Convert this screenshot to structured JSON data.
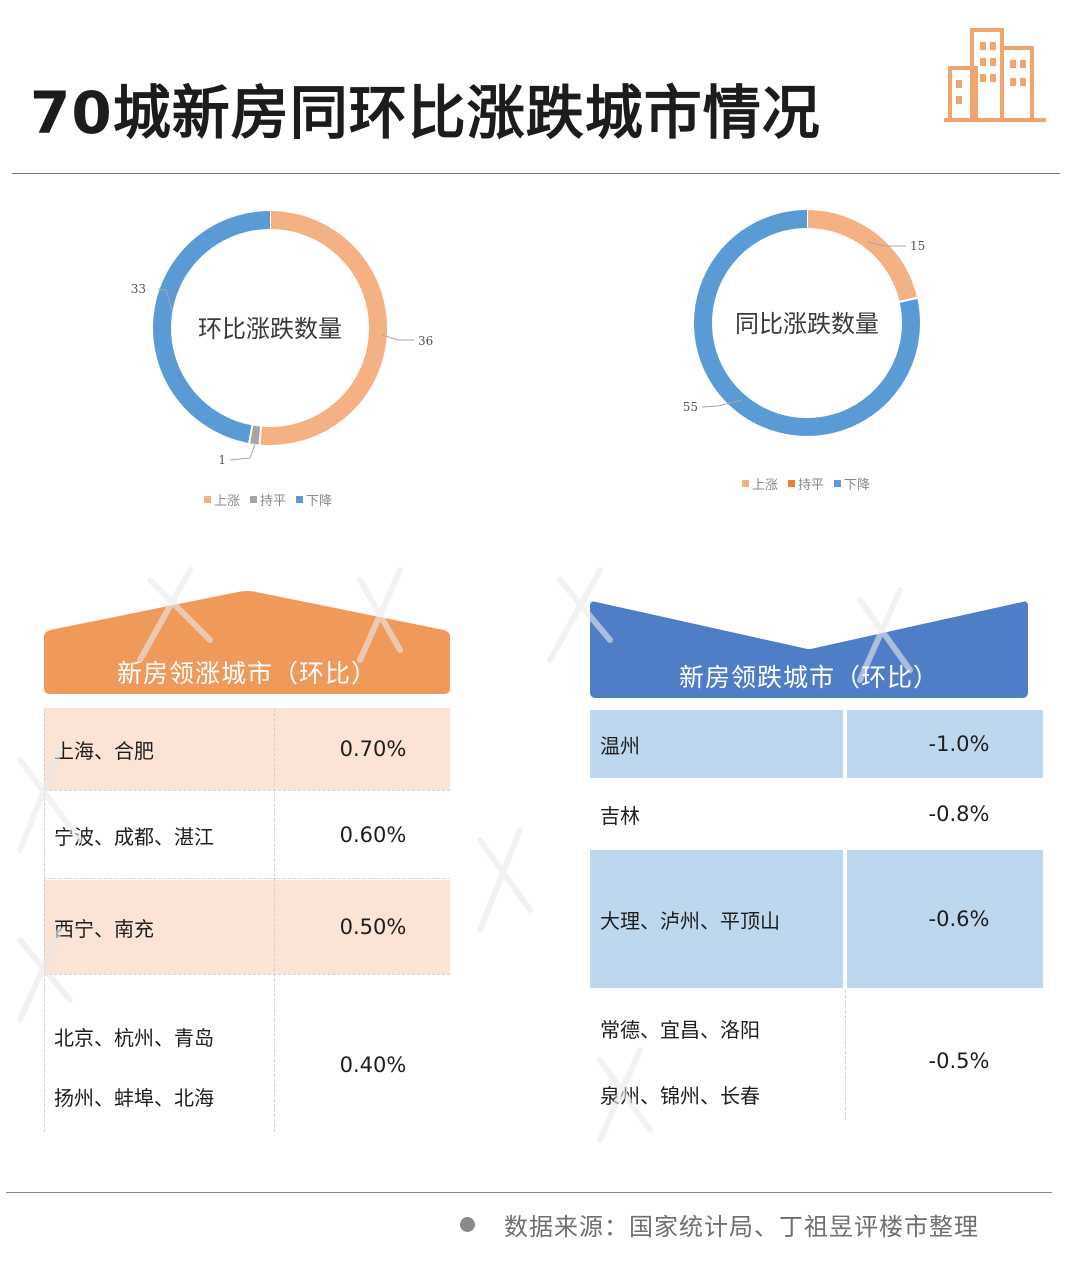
{
  "title": "70城新房同环比涨跌城市情况",
  "logo_icon": "buildings-icon",
  "colors": {
    "orange": "#F4B183",
    "blue": "#5B9BD5",
    "gray": "#A5A5A5",
    "rise_banner": "#EF9A5B",
    "fall_banner": "#4F7EC6",
    "rise_row": "#FBE3D6",
    "fall_row": "#BDD7EE"
  },
  "chart_data": [
    {
      "type": "pie",
      "title": "环比涨跌数量",
      "legend": [
        "上涨",
        "持平",
        "下降"
      ],
      "values": [
        36,
        1,
        33
      ],
      "labels": [
        "36",
        "1",
        "33"
      ],
      "colors": [
        "#F4B183",
        "#A5A5A5",
        "#5B9BD5"
      ],
      "legend_position": "bottom"
    },
    {
      "type": "pie",
      "title": "同比涨跌数量",
      "legend": [
        "上涨",
        "持平",
        "下降"
      ],
      "values": [
        15,
        0,
        55
      ],
      "labels": [
        "15",
        "",
        "55"
      ],
      "colors": [
        "#F4B183",
        "#ED7D31",
        "#5B9BD5"
      ],
      "legend_position": "bottom"
    },
    {
      "type": "table",
      "title": "新房领涨城市（环比）",
      "rows": [
        {
          "cities": [
            "上海、合肥"
          ],
          "value": "0.70%"
        },
        {
          "cities": [
            "宁波、成都、湛江"
          ],
          "value": "0.60%"
        },
        {
          "cities": [
            "西宁、南充"
          ],
          "value": "0.50%"
        },
        {
          "cities": [
            "北京、杭州、青岛",
            "扬州、蚌埠、北海"
          ],
          "value": "0.40%"
        }
      ]
    },
    {
      "type": "table",
      "title": "新房领跌城市（环比）",
      "rows": [
        {
          "cities": [
            "温州"
          ],
          "value": "-1.0%"
        },
        {
          "cities": [
            "吉林"
          ],
          "value": "-0.8%"
        },
        {
          "cities": [
            "大理、泸州、平顶山"
          ],
          "value": "-0.6%"
        },
        {
          "cities": [
            "常德、宜昌、洛阳",
            "泉州、锦州、长春"
          ],
          "value": "-0.5%"
        }
      ]
    }
  ],
  "footer": {
    "source": "数据来源：国家统计局、丁祖昱评楼市整理"
  }
}
